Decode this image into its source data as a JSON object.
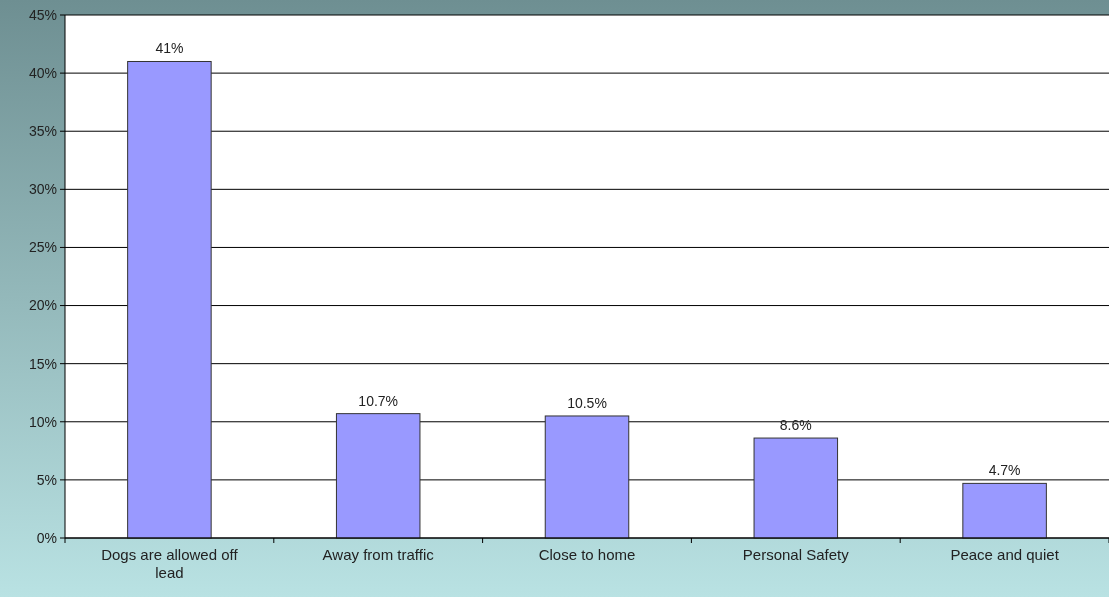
{
  "chart_data": {
    "type": "bar",
    "categories": [
      "Dogs are allowed off lead",
      "Away from traffic",
      "Close to home",
      "Personal Safety",
      "Peace and quiet"
    ],
    "values": [
      41,
      10.7,
      10.5,
      8.6,
      4.7
    ],
    "value_labels": [
      "41%",
      "10.7%",
      "10.5%",
      "8.6%",
      "4.7%"
    ],
    "color": "#9999ff",
    "ylim": [
      0,
      45
    ],
    "yticks": [
      {
        "value": 0,
        "label": "0%"
      },
      {
        "value": 5,
        "label": "5%"
      },
      {
        "value": 10,
        "label": "10%"
      },
      {
        "value": 15,
        "label": "15%"
      },
      {
        "value": 20,
        "label": "20%"
      },
      {
        "value": 25,
        "label": "25%"
      },
      {
        "value": 30,
        "label": "30%"
      },
      {
        "value": 35,
        "label": "35%"
      },
      {
        "value": 40,
        "label": "40%"
      },
      {
        "value": 45,
        "label": "45%"
      }
    ],
    "grid": "y"
  }
}
